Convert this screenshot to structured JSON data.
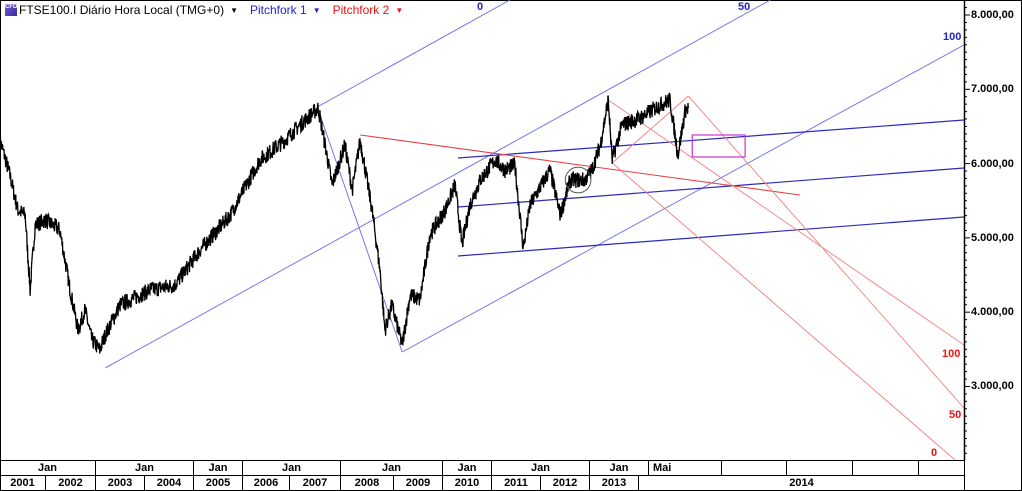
{
  "header": {
    "icon": "cfd-icon",
    "icon_text": "CFD",
    "symbol_title": "FTSE100.I Diário Hora Local (TMG+0)",
    "pitchfork1": "Pitchfork 1",
    "pitchfork2": "Pitchfork 2"
  },
  "colors": {
    "price": "#000000",
    "pitchfork1": "#3333dd",
    "pitchfork2": "#ee3333",
    "highlight_box": "#cc33cc",
    "circle": "#555555"
  },
  "chart_data": {
    "type": "line",
    "title": "FTSE100.I Diário Hora Local (TMG+0)",
    "xlim": [
      2001.07,
      2020.58
    ],
    "ylim": [
      2010,
      8202
    ],
    "y_ticks": [
      {
        "value": 8000,
        "label": "8.000,00"
      },
      {
        "value": 7000,
        "label": "7.000,00"
      },
      {
        "value": 6000,
        "label": "6.000,00"
      },
      {
        "value": 5000,
        "label": "5.000,00"
      },
      {
        "value": 4000,
        "label": "4.000,00"
      },
      {
        "value": 3000,
        "label": "3.000,00"
      }
    ],
    "x_axis_top": [
      {
        "label": "Jan",
        "from": 2001.07,
        "to": 2003.02
      },
      {
        "label": "Jan",
        "from": 2003.02,
        "to": 2005.0
      },
      {
        "label": "Jan",
        "from": 2005.0,
        "to": 2005.99
      },
      {
        "label": "Jan",
        "from": 2005.99,
        "to": 2007.97
      },
      {
        "label": "Jan",
        "from": 2007.97,
        "to": 2010.04
      },
      {
        "label": "Jan",
        "from": 2010.04,
        "to": 2011.03
      },
      {
        "label": "Jan",
        "from": 2011.03,
        "to": 2013.01
      },
      {
        "label": "Jan",
        "from": 2013.01,
        "to": 2014.21
      },
      {
        "label": "Mai",
        "from": 2014.21,
        "to": 2015.69
      },
      {
        "label": "",
        "from": 2015.69,
        "to": 2017.0
      },
      {
        "label": "",
        "from": 2017.0,
        "to": 2018.34
      },
      {
        "label": "",
        "from": 2018.34,
        "to": 2019.67
      },
      {
        "label": "",
        "from": 2019.67,
        "to": 2020.6
      }
    ],
    "x_axis_bottom": [
      {
        "label": "2001",
        "from": 2001.07,
        "to": 2002.0
      },
      {
        "label": "2002",
        "from": 2002.0,
        "to": 2003.02
      },
      {
        "label": "2003",
        "from": 2003.02,
        "to": 2004.01
      },
      {
        "label": "2004",
        "from": 2004.01,
        "to": 2005.0
      },
      {
        "label": "2005",
        "from": 2005.0,
        "to": 2005.99
      },
      {
        "label": "2006",
        "from": 2005.99,
        "to": 2006.94
      },
      {
        "label": "2007",
        "from": 2006.94,
        "to": 2007.97
      },
      {
        "label": "2008",
        "from": 2007.97,
        "to": 2009.05
      },
      {
        "label": "2009",
        "from": 2009.05,
        "to": 2010.04
      },
      {
        "label": "2010",
        "from": 2010.04,
        "to": 2011.03
      },
      {
        "label": "2011",
        "from": 2011.03,
        "to": 2012.02
      },
      {
        "label": "2012",
        "from": 2012.02,
        "to": 2013.01
      },
      {
        "label": "2013",
        "from": 2013.01,
        "to": 2014.01
      },
      {
        "label": "2014",
        "from": 2014.01,
        "to": 2020.6
      }
    ],
    "series": [
      {
        "name": "FTSE100.I",
        "points": [
          [
            2001.07,
            6317
          ],
          [
            2001.27,
            5846
          ],
          [
            2001.43,
            5375
          ],
          [
            2001.58,
            5308
          ],
          [
            2001.68,
            4298
          ],
          [
            2001.78,
            5173
          ],
          [
            2001.98,
            5241
          ],
          [
            2002.28,
            5106
          ],
          [
            2002.49,
            4298
          ],
          [
            2002.65,
            3760
          ],
          [
            2002.79,
            4029
          ],
          [
            2002.93,
            3626
          ],
          [
            2003.09,
            3491
          ],
          [
            2003.2,
            3693
          ],
          [
            2003.5,
            4097
          ],
          [
            2004.11,
            4298
          ],
          [
            2004.61,
            4366
          ],
          [
            2005.12,
            4837
          ],
          [
            2005.73,
            5308
          ],
          [
            2006.33,
            6048
          ],
          [
            2006.84,
            6317
          ],
          [
            2007.14,
            6519
          ],
          [
            2007.51,
            6748
          ],
          [
            2007.65,
            6250
          ],
          [
            2007.79,
            5712
          ],
          [
            2008.05,
            6250
          ],
          [
            2008.2,
            5645
          ],
          [
            2008.36,
            6317
          ],
          [
            2008.6,
            5375
          ],
          [
            2008.76,
            4568
          ],
          [
            2008.86,
            3760
          ],
          [
            2009.0,
            4097
          ],
          [
            2009.21,
            3558
          ],
          [
            2009.37,
            4231
          ],
          [
            2009.57,
            4164
          ],
          [
            2009.77,
            5039
          ],
          [
            2010.08,
            5375
          ],
          [
            2010.28,
            5712
          ],
          [
            2010.42,
            4904
          ],
          [
            2010.58,
            5443
          ],
          [
            2010.79,
            5779
          ],
          [
            2011.09,
            6048
          ],
          [
            2011.29,
            5914
          ],
          [
            2011.49,
            5981
          ],
          [
            2011.66,
            4864
          ],
          [
            2011.8,
            5443
          ],
          [
            2012.2,
            5914
          ],
          [
            2012.41,
            5308
          ],
          [
            2012.61,
            5779
          ],
          [
            2012.91,
            5779
          ],
          [
            2013.05,
            5914
          ],
          [
            2013.22,
            6250
          ],
          [
            2013.38,
            6856
          ],
          [
            2013.46,
            6048
          ],
          [
            2013.66,
            6519
          ],
          [
            2014.03,
            6614
          ],
          [
            2014.43,
            6789
          ],
          [
            2014.63,
            6856
          ],
          [
            2014.79,
            6116
          ],
          [
            2014.94,
            6721
          ],
          [
            2015.0,
            6748
          ]
        ]
      }
    ],
    "drawings": {
      "pitchfork1": {
        "lines": [
          [
            [
              2007.49,
              6762
            ],
            [
              2011.39,
              8202
            ]
          ],
          [
            [
              2003.2,
              3249
            ],
            [
              2016.66,
              8202
            ]
          ],
          [
            [
              2009.21,
              3464
            ],
            [
              2020.58,
              7596
            ]
          ],
          [
            [
              2010.34,
              6075
            ],
            [
              2020.58,
              6587
            ]
          ],
          [
            [
              2010.34,
              5416
            ],
            [
              2020.58,
              5941
            ]
          ],
          [
            [
              2010.34,
              4756
            ],
            [
              2020.58,
              5281
            ]
          ],
          [
            [
              2007.49,
              6762
            ],
            [
              2009.21,
              3464
            ]
          ]
        ],
        "levels": [
          {
            "label": "0"
          },
          {
            "label": "50"
          },
          {
            "label": "100"
          }
        ]
      },
      "pitchfork2": {
        "lines": [
          [
            [
              2008.36,
              6385
            ],
            [
              2017.26,
              5577
            ]
          ],
          [
            [
              2013.38,
              6856
            ],
            [
              2020.58,
              3558
            ]
          ],
          [
            [
              2015.0,
              6910
            ],
            [
              2020.58,
              2710
            ]
          ],
          [
            [
              2013.46,
              6008
            ],
            [
              2020.4,
              2010
            ]
          ],
          [
            [
              2013.46,
              6008
            ],
            [
              2015.0,
              6910
            ]
          ]
        ],
        "levels": [
          {
            "label": "100"
          },
          {
            "label": "50"
          },
          {
            "label": "0"
          }
        ]
      },
      "highlight_box": [
        [
          2015.08,
          6385
        ],
        [
          2016.15,
          6089
        ]
      ],
      "circle": {
        "center": [
          2012.77,
          5779
        ],
        "radius_years": 0.26
      }
    }
  }
}
